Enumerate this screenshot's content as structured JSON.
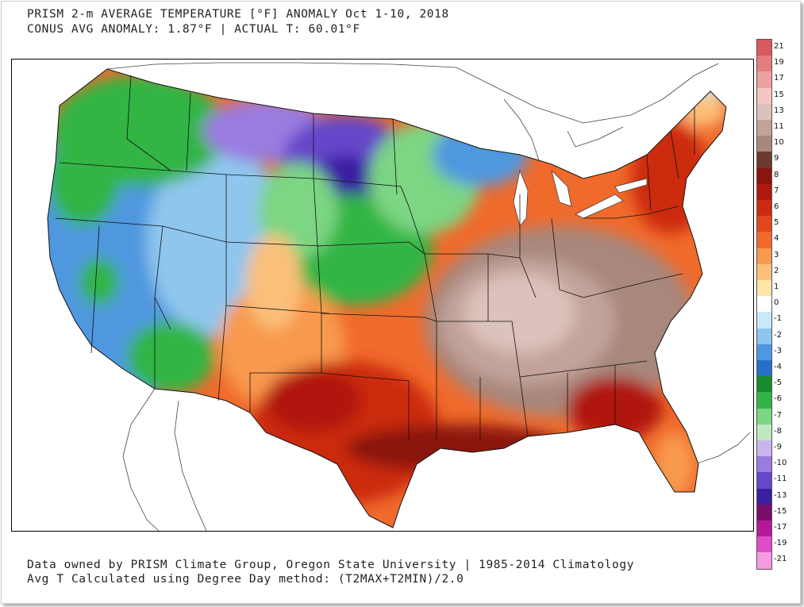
{
  "header": {
    "title_line1": "PRISM 2-m AVERAGE TEMPERATURE [°F] ANOMALY Oct 1-10, 2018",
    "title_line2": "CONUS AVG ANOMALY: 1.87°F | ACTUAL T: 60.01°F"
  },
  "footer": {
    "line1": "Data owned by PRISM Climate Group, Oregon State University | 1985-2014 Climatology",
    "line2": "Avg T Calculated using Degree Day method: (T2MAX+T2MIN)/2.0"
  },
  "colorbar": {
    "levels": [
      {
        "label": "21",
        "color": "#d9595e"
      },
      {
        "label": "19",
        "color": "#e57d80"
      },
      {
        "label": "17",
        "color": "#eda0a1"
      },
      {
        "label": "15",
        "color": "#f4c6c4"
      },
      {
        "label": "13",
        "color": "#dcc2bc"
      },
      {
        "label": "11",
        "color": "#c2a39a"
      },
      {
        "label": "10",
        "color": "#a8877c"
      },
      {
        "label": "9",
        "color": "#6b3a2e"
      },
      {
        "label": "8",
        "color": "#8a1410"
      },
      {
        "label": "7",
        "color": "#b0180f"
      },
      {
        "label": "6",
        "color": "#cc2a10"
      },
      {
        "label": "5",
        "color": "#e2461c"
      },
      {
        "label": "4",
        "color": "#f06a2c"
      },
      {
        "label": "3",
        "color": "#f89a4e"
      },
      {
        "label": "2",
        "color": "#fbc07a"
      },
      {
        "label": "1",
        "color": "#fde6a8"
      },
      {
        "label": "0",
        "color": "#ffffff"
      },
      {
        "label": "-1",
        "color": "#c9e8f9"
      },
      {
        "label": "-2",
        "color": "#8ec6ee"
      },
      {
        "label": "-3",
        "color": "#4f97df"
      },
      {
        "label": "-4",
        "color": "#2a6fc6"
      },
      {
        "label": "-5",
        "color": "#1a8a2e"
      },
      {
        "label": "-6",
        "color": "#33b545"
      },
      {
        "label": "-7",
        "color": "#7cd683"
      },
      {
        "label": "-8",
        "color": "#bfe9bf"
      },
      {
        "label": "-9",
        "color": "#c8b6ec"
      },
      {
        "label": "-10",
        "color": "#9a7be0"
      },
      {
        "label": "-11",
        "color": "#6547c9"
      },
      {
        "label": "-13",
        "color": "#3a1fa2"
      },
      {
        "label": "-15",
        "color": "#7a0e6a"
      },
      {
        "label": "-17",
        "color": "#b5199a"
      },
      {
        "label": "-19",
        "color": "#e04bc7"
      },
      {
        "label": "-21",
        "color": "#f59be4"
      }
    ]
  }
}
